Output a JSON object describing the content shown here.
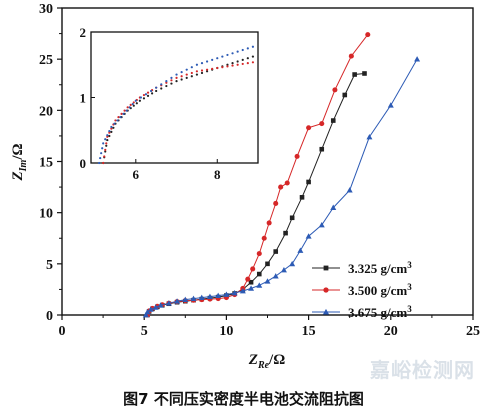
{
  "chart_data": {
    "type": "scatter",
    "xlabel": {
      "main": "Z",
      "sub": "Re",
      "unit": "/Ω"
    },
    "ylabel": {
      "main": "Z",
      "sub": "Im",
      "unit": "/Ω"
    },
    "xlim": [
      0,
      25
    ],
    "ylim": [
      0,
      30
    ],
    "xticks": [
      0,
      5,
      10,
      15,
      20,
      25
    ],
    "yticks": [
      0,
      5,
      10,
      15,
      20,
      25,
      30
    ],
    "legend_position": "lower-right",
    "series": [
      {
        "name": "3.325 g/cm",
        "name_sup": "3",
        "color": "#222222",
        "marker": "square",
        "points": [
          [
            5.2,
            0.0
          ],
          [
            5.3,
            0.35
          ],
          [
            5.5,
            0.6
          ],
          [
            5.8,
            0.8
          ],
          [
            6.1,
            0.95
          ],
          [
            6.5,
            1.1
          ],
          [
            7.0,
            1.25
          ],
          [
            7.5,
            1.35
          ],
          [
            8.0,
            1.45
          ],
          [
            8.5,
            1.55
          ],
          [
            9.0,
            1.65
          ],
          [
            9.5,
            1.75
          ],
          [
            10.0,
            1.9
          ],
          [
            10.5,
            2.1
          ],
          [
            11.0,
            2.5
          ],
          [
            11.5,
            3.2
          ],
          [
            12.0,
            4.0
          ],
          [
            12.5,
            5.0
          ],
          [
            13.0,
            6.2
          ],
          [
            13.6,
            8.0
          ],
          [
            14.0,
            9.5
          ],
          [
            14.6,
            11.5
          ],
          [
            15.0,
            13.0
          ],
          [
            15.8,
            16.2
          ],
          [
            16.5,
            19.0
          ],
          [
            17.2,
            21.5
          ],
          [
            17.8,
            23.5
          ],
          [
            18.4,
            23.6
          ]
        ]
      },
      {
        "name": "3.500 g/cm",
        "name_sup": "3",
        "color": "#d62728",
        "marker": "circle",
        "points": [
          [
            5.2,
            0.0
          ],
          [
            5.3,
            0.4
          ],
          [
            5.5,
            0.65
          ],
          [
            5.8,
            0.85
          ],
          [
            6.1,
            1.0
          ],
          [
            6.5,
            1.15
          ],
          [
            7.0,
            1.3
          ],
          [
            7.5,
            1.4
          ],
          [
            8.0,
            1.45
          ],
          [
            8.5,
            1.5
          ],
          [
            9.0,
            1.55
          ],
          [
            9.5,
            1.6
          ],
          [
            10.0,
            1.7
          ],
          [
            10.5,
            2.0
          ],
          [
            11.0,
            2.6
          ],
          [
            11.3,
            3.5
          ],
          [
            11.6,
            4.5
          ],
          [
            12.0,
            6.0
          ],
          [
            12.3,
            7.5
          ],
          [
            12.6,
            9.0
          ],
          [
            13.0,
            10.9
          ],
          [
            13.3,
            12.5
          ],
          [
            13.7,
            12.9
          ],
          [
            14.3,
            15.5
          ],
          [
            15.0,
            18.3
          ],
          [
            15.8,
            18.7
          ],
          [
            16.6,
            22.0
          ],
          [
            17.6,
            25.3
          ],
          [
            18.6,
            27.4
          ]
        ]
      },
      {
        "name": "3.675 g/cm",
        "name_sup": "3",
        "color": "#2d5bb5",
        "marker": "triangle",
        "points": [
          [
            5.1,
            0.0
          ],
          [
            5.2,
            0.3
          ],
          [
            5.4,
            0.55
          ],
          [
            5.7,
            0.75
          ],
          [
            6.0,
            0.95
          ],
          [
            6.5,
            1.15
          ],
          [
            7.0,
            1.35
          ],
          [
            7.5,
            1.5
          ],
          [
            8.0,
            1.6
          ],
          [
            8.5,
            1.7
          ],
          [
            9.0,
            1.8
          ],
          [
            9.5,
            1.9
          ],
          [
            10.0,
            2.0
          ],
          [
            10.5,
            2.15
          ],
          [
            11.0,
            2.35
          ],
          [
            11.5,
            2.6
          ],
          [
            12.0,
            2.9
          ],
          [
            12.5,
            3.3
          ],
          [
            13.0,
            3.8
          ],
          [
            13.5,
            4.4
          ],
          [
            14.0,
            5.0
          ],
          [
            14.5,
            6.3
          ],
          [
            15.0,
            7.7
          ],
          [
            15.8,
            8.8
          ],
          [
            16.5,
            10.5
          ],
          [
            17.5,
            12.2
          ],
          [
            18.7,
            17.4
          ],
          [
            20.0,
            20.5
          ],
          [
            21.6,
            25.0
          ]
        ]
      }
    ],
    "inset": {
      "xlim": [
        4.9,
        9.0
      ],
      "ylim": [
        0,
        2
      ],
      "xticks": [
        6,
        8
      ],
      "yticks": [
        0,
        1,
        2
      ],
      "series": [
        {
          "color": "#222222",
          "points": [
            [
              5.2,
              0.0
            ],
            [
              5.3,
              0.35
            ],
            [
              5.5,
              0.6
            ],
            [
              5.8,
              0.8
            ],
            [
              6.1,
              0.95
            ],
            [
              6.5,
              1.1
            ],
            [
              7.0,
              1.25
            ],
            [
              7.5,
              1.35
            ],
            [
              8.0,
              1.45
            ],
            [
              8.5,
              1.55
            ],
            [
              9.0,
              1.65
            ]
          ]
        },
        {
          "color": "#d62728",
          "points": [
            [
              5.2,
              0.0
            ],
            [
              5.3,
              0.4
            ],
            [
              5.5,
              0.65
            ],
            [
              5.8,
              0.85
            ],
            [
              6.1,
              1.0
            ],
            [
              6.5,
              1.15
            ],
            [
              7.0,
              1.3
            ],
            [
              7.5,
              1.4
            ],
            [
              8.0,
              1.45
            ],
            [
              8.5,
              1.5
            ],
            [
              9.0,
              1.55
            ]
          ]
        },
        {
          "color": "#2d5bb5",
          "points": [
            [
              5.1,
              0.0
            ],
            [
              5.2,
              0.3
            ],
            [
              5.4,
              0.55
            ],
            [
              5.7,
              0.75
            ],
            [
              6.0,
              0.95
            ],
            [
              6.5,
              1.15
            ],
            [
              7.0,
              1.35
            ],
            [
              7.5,
              1.5
            ],
            [
              8.0,
              1.6
            ],
            [
              8.5,
              1.7
            ],
            [
              9.0,
              1.8
            ]
          ]
        }
      ]
    }
  },
  "caption": "图7    不同压实密度半电池交流阻抗图",
  "watermark": "嘉峪检测网"
}
